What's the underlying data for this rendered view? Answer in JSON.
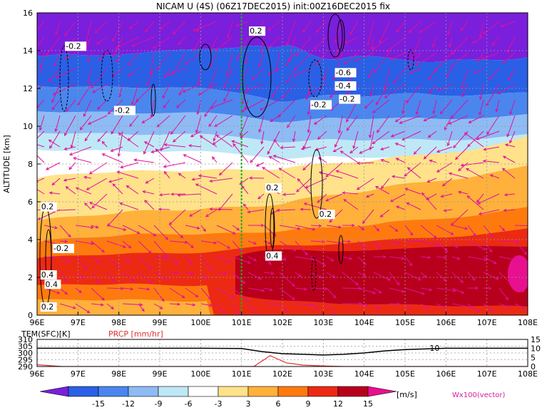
{
  "title": "NICAM U (4S) (06Z17DEC2015) init:00Z16DEC2015 fix",
  "colors": {
    "vector": "#e0109c",
    "marker_line": "#22aa22",
    "precip_line": "#e03030",
    "contour_label_bg": "#ffffff",
    "contour_line": "#000000"
  },
  "chart_data": [
    {
      "type": "heatmap",
      "title": "NICAM U (4S) (06Z17DEC2015) init:00Z16DEC2015 fix",
      "xlabel": "",
      "ylabel": "ALTITUDE [km]",
      "x_ticks": [
        "96E",
        "97E",
        "98E",
        "99E",
        "100E",
        "101E",
        "102E",
        "103E",
        "104E",
        "105E",
        "106E",
        "107E",
        "108E"
      ],
      "y_ticks": [
        "0",
        "2",
        "4",
        "6",
        "8",
        "10",
        "12",
        "14",
        "16"
      ],
      "xlim": [
        96,
        108
      ],
      "ylim": [
        0,
        16
      ],
      "grid": true,
      "vertical_marker_lon": 101,
      "contour_labels": [
        {
          "text": "-0.2",
          "lon": 96.7,
          "alt": 14.1
        },
        {
          "text": "0.2",
          "lon": 101.2,
          "alt": 14.9
        },
        {
          "text": "-0.2",
          "lon": 97.9,
          "alt": 10.7
        },
        {
          "text": "-0.6",
          "lon": 103.3,
          "alt": 12.7
        },
        {
          "text": "-0.4",
          "lon": 103.3,
          "alt": 12.0
        },
        {
          "text": "-0.2",
          "lon": 103.4,
          "alt": 11.3
        },
        {
          "text": "-0.2",
          "lon": 102.7,
          "alt": 11.0
        },
        {
          "text": "0.2",
          "lon": 96.1,
          "alt": 5.6
        },
        {
          "text": "0.2",
          "lon": 101.6,
          "alt": 6.6
        },
        {
          "text": "0.2",
          "lon": 102.9,
          "alt": 5.2
        },
        {
          "text": "-0.2",
          "lon": 96.4,
          "alt": 3.4
        },
        {
          "text": "0.4",
          "lon": 101.6,
          "alt": 3.0
        },
        {
          "text": "0.4",
          "lon": 96.1,
          "alt": 2.0
        },
        {
          "text": "0.4",
          "lon": 96.2,
          "alt": 1.5
        },
        {
          "text": "0.2",
          "lon": 96.1,
          "alt": 0.3
        }
      ]
    },
    {
      "type": "line",
      "left_label": "TEM(SFC)[K]",
      "right_label": "PRCP [mm/hr]",
      "x_ticks": [
        "96E",
        "97E",
        "98E",
        "99E",
        "100E",
        "101E",
        "102E",
        "103E",
        "104E",
        "105E",
        "106E",
        "107E",
        "108E"
      ],
      "left_ticks": [
        "290",
        "295",
        "300",
        "305",
        "310"
      ],
      "right_ticks": [
        "0",
        "5",
        "10",
        "15"
      ],
      "xlim": [
        96,
        108
      ],
      "left_ylim": [
        290,
        310
      ],
      "right_ylim": [
        0,
        15
      ],
      "series": [
        {
          "name": "TEM(SFC)[K]",
          "x": [
            96,
            97,
            98,
            99,
            100,
            101,
            101.5,
            102,
            102.5,
            103,
            103.5,
            104,
            104.5,
            105,
            106,
            107,
            108
          ],
          "values": [
            303.5,
            303.5,
            303.5,
            303.5,
            303.5,
            303.3,
            301,
            299.5,
            299,
            298.5,
            299,
            300,
            301.5,
            302.5,
            303.5,
            303.5,
            303.5
          ]
        },
        {
          "name": "PRCP [mm/hr]",
          "x": [
            96,
            96.3,
            96.6,
            101.3,
            101.5,
            101.7,
            101.9,
            102.1,
            102.5,
            103,
            103.5,
            108
          ],
          "values": [
            1,
            0.5,
            0,
            0,
            3,
            6,
            4,
            2,
            0.8,
            0.3,
            0,
            0
          ]
        }
      ],
      "annotation": "10"
    }
  ],
  "colorbar": {
    "levels": [
      "-15",
      "-12",
      "-9",
      "-6",
      "-3",
      "3",
      "6",
      "9",
      "12",
      "15"
    ],
    "unit": "[m/s]",
    "colors": [
      "#7a1fdc",
      "#2a60e6",
      "#4a86ee",
      "#8ebbf4",
      "#bfe8f6",
      "#ffffff",
      "#ffe28a",
      "#ffb13b",
      "#ff7a0e",
      "#ec2a14",
      "#b8001c",
      "#e8108e"
    ]
  },
  "vector_label": "Wx100(vector)"
}
